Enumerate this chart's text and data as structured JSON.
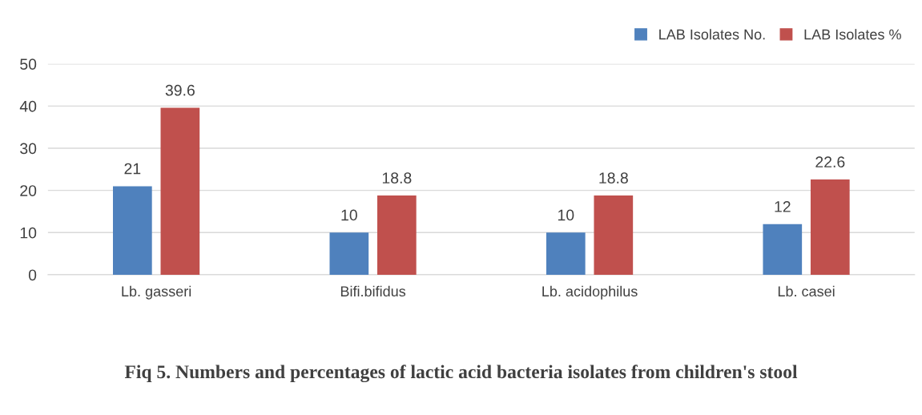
{
  "chart_data": {
    "type": "bar",
    "title": "Fiq 5. Numbers and percentages of lactic acid bacteria isolates from children's stool",
    "categories": [
      "Lb. gasseri",
      "Bifi.bifidus",
      "Lb. acidophilus",
      "Lb. casei"
    ],
    "series": [
      {
        "name": "LAB Isolates No.",
        "color": "#4f81bd",
        "values": [
          21,
          10,
          10,
          12
        ]
      },
      {
        "name": "LAB Isolates %",
        "color": "#c0504d",
        "values": [
          39.6,
          18.8,
          18.8,
          22.6
        ]
      }
    ],
    "ylim": [
      0,
      50
    ],
    "yticks": [
      0,
      10,
      20,
      30,
      40,
      50
    ],
    "grid": "y",
    "legend": "top right",
    "data_labels": true
  }
}
